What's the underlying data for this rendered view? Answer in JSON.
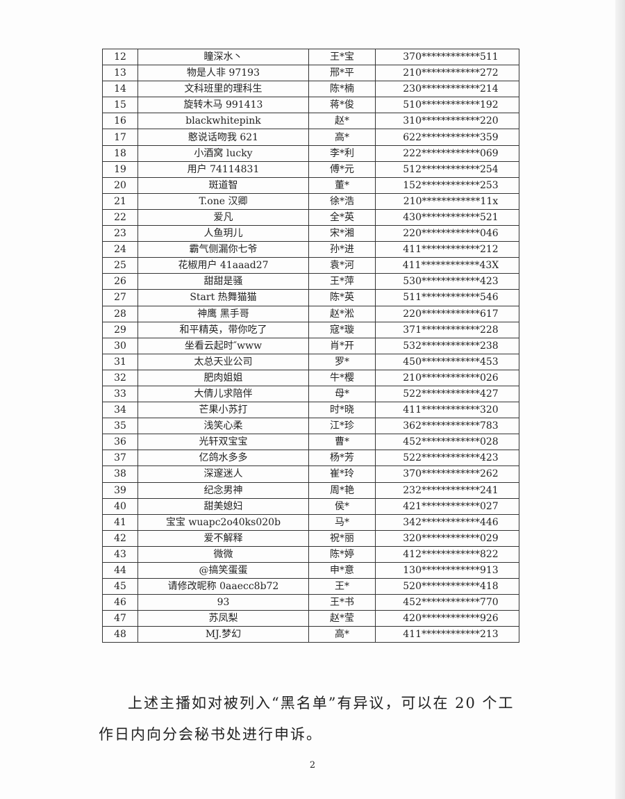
{
  "table": {
    "rows": [
      [
        "12",
        "瞳深水丶",
        "王*宝",
        "370************511"
      ],
      [
        "13",
        "物是人非 97193",
        "邢*平",
        "210************272"
      ],
      [
        "14",
        "文科班里的理科生",
        "陈*楠",
        "230************214"
      ],
      [
        "15",
        "旋转木马 991413",
        "蒋*俊",
        "510************192"
      ],
      [
        "16",
        "blackwhitepink",
        "赵*",
        "310************220"
      ],
      [
        "17",
        "憨说话吻我 621",
        "高*",
        "622************359"
      ],
      [
        "18",
        "小酒窝 lucky",
        "李*利",
        "222************069"
      ],
      [
        "19",
        "用户 74114831",
        "傅*元",
        "512************254"
      ],
      [
        "20",
        "斑道智",
        "董*",
        "152************253"
      ],
      [
        "21",
        "T.one 汉卿",
        "徐*浩",
        "210************11x"
      ],
      [
        "22",
        "爱凡",
        "全*英",
        "430************521"
      ],
      [
        "23",
        "人鱼玥儿",
        "宋*湘",
        "220************046"
      ],
      [
        "24",
        "霸气侧漏你七爷",
        "孙*进",
        "411************212"
      ],
      [
        "25",
        "花椒用户 41aaad27",
        "袁*河",
        "411************43X"
      ],
      [
        "26",
        "甜甜是骚",
        "王*萍",
        "530************423"
      ],
      [
        "27",
        "Start 热舞猫猫",
        "陈*英",
        "511************546"
      ],
      [
        "28",
        "神鹰  黑手哥",
        "赵*淞",
        "220************617"
      ],
      [
        "29",
        "和平精英，带你吃了",
        "寇*璇",
        "371************228"
      ],
      [
        "30",
        "坐看云起时″www",
        "肖*开",
        "532************238"
      ],
      [
        "31",
        "太总天业公司",
        "罗*",
        "450************453"
      ],
      [
        "32",
        "肥肉姐姐",
        "牛*樱",
        "210************026"
      ],
      [
        "33",
        "大倩儿求陪伴",
        "母*",
        "522************427"
      ],
      [
        "34",
        "芒果小苏打",
        "时*晓",
        "411************320"
      ],
      [
        "35",
        "浅笑心柔",
        "江*珍",
        "362************783"
      ],
      [
        "36",
        "光轩双宝宝",
        "曹*",
        "452************028"
      ],
      [
        "37",
        "亿鸽水多多",
        "杨*芳",
        "522************423"
      ],
      [
        "38",
        "深邃迷人",
        "崔*玲",
        "370************262"
      ],
      [
        "39",
        "纪念男神",
        "周*艳",
        "232************241"
      ],
      [
        "40",
        "甜美媳妇",
        "侯*",
        "421************027"
      ],
      [
        "41",
        "宝宝 wuapc2o40ks020b",
        "马*",
        "342************446"
      ],
      [
        "42",
        "爱不解释",
        "祝*丽",
        "320************029"
      ],
      [
        "43",
        "微微",
        "陈*婷",
        "412************822"
      ],
      [
        "44",
        "@搞笑蛋蛋",
        "申*意",
        "130************913"
      ],
      [
        "45",
        "请修改昵称 0aaecc8b72",
        "王*",
        "520************418"
      ],
      [
        "46",
        "93",
        "王*书",
        "452************770"
      ],
      [
        "47",
        "苏凤梨",
        "赵*莹",
        "420************926"
      ],
      [
        "48",
        "MJ.梦幻",
        "高*",
        "411************213"
      ]
    ]
  },
  "footer_text": "上述主播如对被列入“黑名单”有异议，可以在 20 个工作日内向分会秘书处进行申诉。",
  "page_number": "2"
}
